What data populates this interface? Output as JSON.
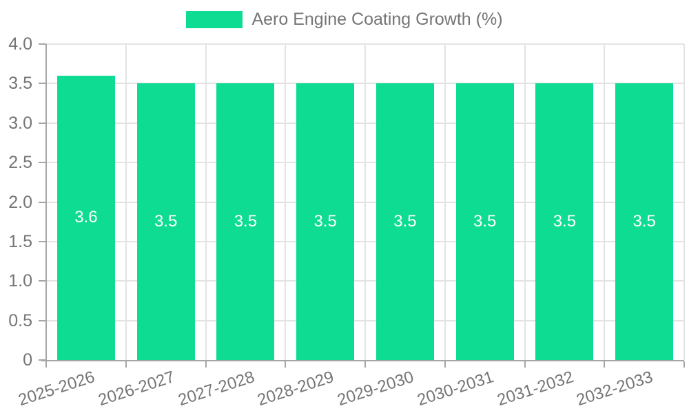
{
  "chart_data": {
    "type": "bar",
    "title": "Aero Engine Coating Growth (%)",
    "legend": {
      "position": "top-center"
    },
    "categories": [
      "2025-2026",
      "2026-2027",
      "2027-2028",
      "2028-2029",
      "2029-2030",
      "2030-2031",
      "2031-2032",
      "2032-2033"
    ],
    "values": [
      3.6,
      3.5,
      3.5,
      3.5,
      3.5,
      3.5,
      3.5,
      3.5
    ],
    "bar_labels": [
      "3.6",
      "3.5",
      "3.5",
      "3.5",
      "3.5",
      "3.5",
      "3.5",
      "3.5"
    ],
    "xlabel": "",
    "ylabel": "",
    "ylim": [
      0,
      4
    ],
    "y_ticks": [
      {
        "value": 4,
        "label": "4.0"
      },
      {
        "value": 3.5,
        "label": "3.5"
      },
      {
        "value": 3,
        "label": "3.0"
      },
      {
        "value": 2.5,
        "label": "2.5"
      },
      {
        "value": 2,
        "label": "2.0"
      },
      {
        "value": 1.5,
        "label": "1.5"
      },
      {
        "value": 1,
        "label": "1.0"
      },
      {
        "value": 0.5,
        "label": "0.5"
      },
      {
        "value": 0,
        "label": "0"
      }
    ],
    "grid": true,
    "x_label_rotation_deg": -18,
    "colors": {
      "bar": "#0edc92",
      "bar_value_text": "#ffffff",
      "axis_line": "#a6a6a6",
      "gridline": "#e3e3e3",
      "tick_text": "#757575",
      "background": "#ffffff"
    }
  }
}
